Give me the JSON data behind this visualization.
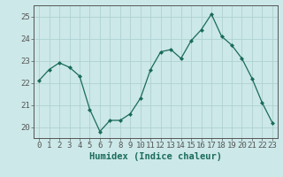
{
  "xlabel": "Humidex (Indice chaleur)",
  "ylabel": "",
  "x_values": [
    0,
    1,
    2,
    3,
    4,
    5,
    6,
    7,
    8,
    9,
    10,
    11,
    12,
    13,
    14,
    15,
    16,
    17,
    18,
    19,
    20,
    21,
    22,
    23
  ],
  "y_values": [
    22.1,
    22.6,
    22.9,
    22.7,
    22.3,
    20.8,
    19.8,
    20.3,
    20.3,
    20.6,
    21.3,
    22.6,
    23.4,
    23.5,
    23.1,
    23.9,
    24.4,
    25.1,
    24.1,
    23.7,
    23.1,
    22.2,
    21.1,
    20.2
  ],
  "line_color": "#1a6b5a",
  "marker_color": "#1a6b5a",
  "bg_color": "#cce8e8",
  "grid_color": "#aacece",
  "axis_color": "#555555",
  "text_color": "#1a6b5a",
  "ylim": [
    19.5,
    25.5
  ],
  "yticks": [
    20,
    21,
    22,
    23,
    24,
    25
  ],
  "xticks": [
    0,
    1,
    2,
    3,
    4,
    5,
    6,
    7,
    8,
    9,
    10,
    11,
    12,
    13,
    14,
    15,
    16,
    17,
    18,
    19,
    20,
    21,
    22,
    23
  ],
  "tick_fontsize": 6.5,
  "label_fontsize": 7.5
}
